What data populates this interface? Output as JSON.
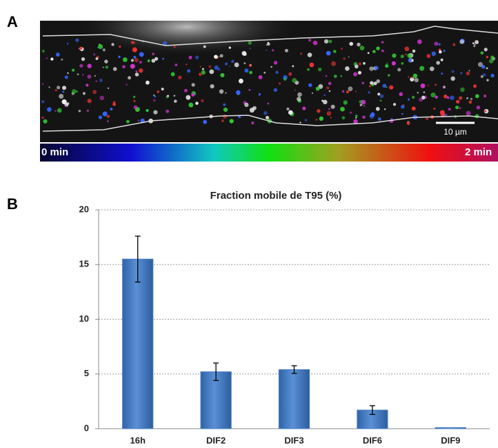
{
  "figure": {
    "panel_a": "A",
    "panel_b": "B",
    "scale_bar": "10 µm",
    "time_start": "0 min",
    "time_end": "2 min"
  },
  "chart_data": {
    "type": "bar",
    "title": "Fraction mobile de T95 (%)",
    "categories": [
      "16h",
      "DIF2",
      "DIF3",
      "DIF6",
      "DIF9"
    ],
    "values": [
      15.5,
      5.2,
      5.4,
      1.7,
      0.1
    ],
    "errors": [
      2.1,
      0.8,
      0.35,
      0.4,
      null
    ],
    "color": "#4a7fc4",
    "ylim": [
      0,
      20
    ],
    "yticks": [
      0,
      5,
      10,
      15,
      20
    ],
    "grid": true
  }
}
